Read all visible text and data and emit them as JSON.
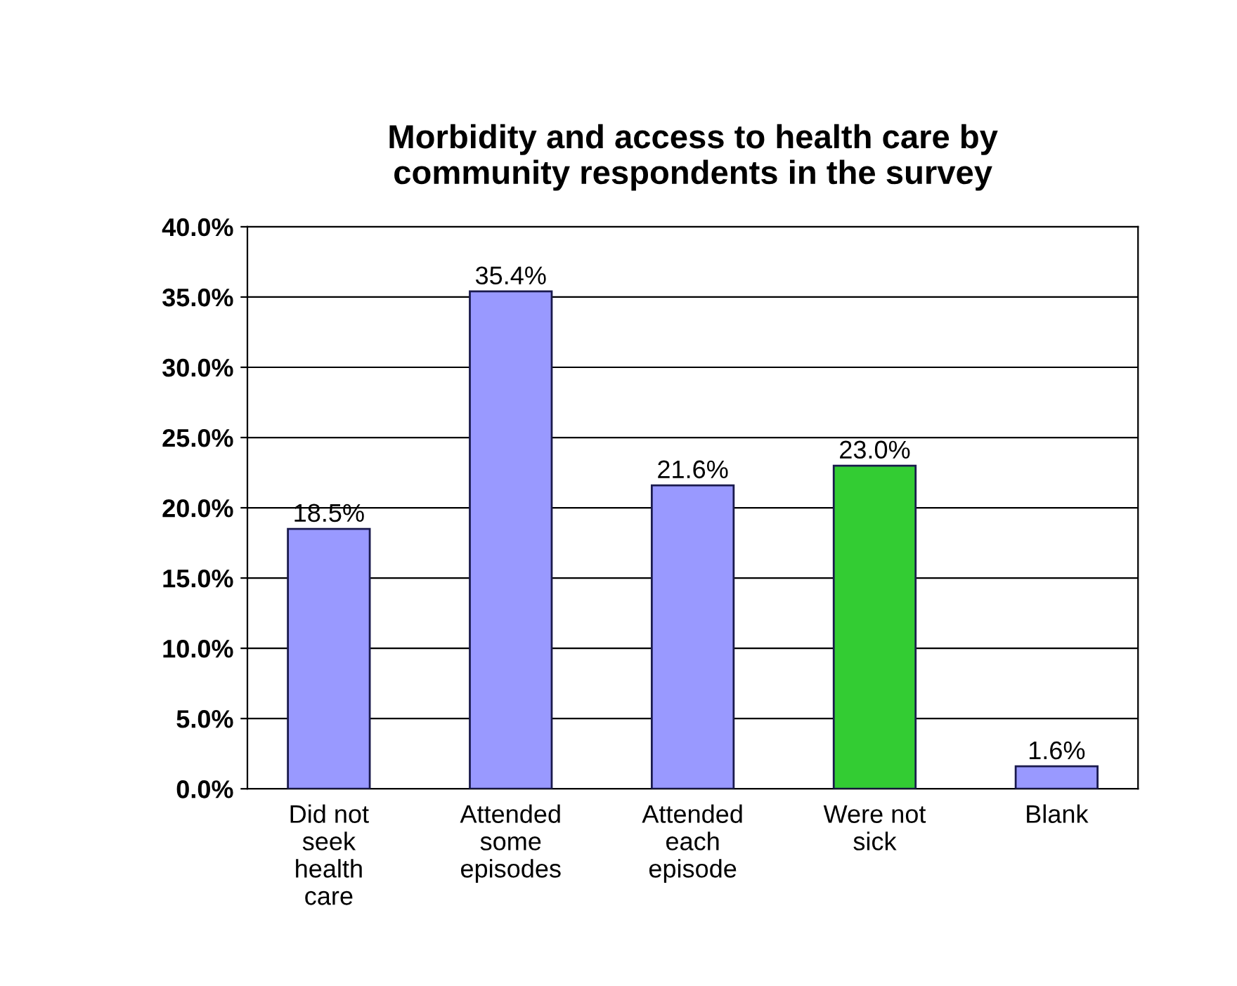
{
  "chart_data": {
    "type": "bar",
    "title": "Morbidity and access to health care by\ncommunity respondents in the survey",
    "categories": [
      "Did not\nseek\nhealth\ncare",
      "Attended\nsome\nepisodes",
      "Attended\neach\nepisode",
      "Were not\nsick",
      "Blank"
    ],
    "values": [
      18.5,
      35.4,
      21.6,
      23.0,
      1.6
    ],
    "value_labels": [
      "18.5%",
      "35.4%",
      "21.6%",
      "23.0%",
      "1.6%"
    ],
    "colors": [
      "#9999ff",
      "#9999ff",
      "#9999ff",
      "#33cc33",
      "#9999ff"
    ],
    "ylim": [
      0,
      40
    ],
    "yticks": [
      {
        "value": 0,
        "label": "0.0%"
      },
      {
        "value": 5,
        "label": "5.0%"
      },
      {
        "value": 10,
        "label": "10.0%"
      },
      {
        "value": 15,
        "label": "15.0%"
      },
      {
        "value": 20,
        "label": "20.0%"
      },
      {
        "value": 25,
        "label": "25.0%"
      },
      {
        "value": 30,
        "label": "30.0%"
      },
      {
        "value": 35,
        "label": "35.0%"
      },
      {
        "value": 40,
        "label": "40.0%"
      }
    ],
    "grid": "y",
    "legend": false
  }
}
